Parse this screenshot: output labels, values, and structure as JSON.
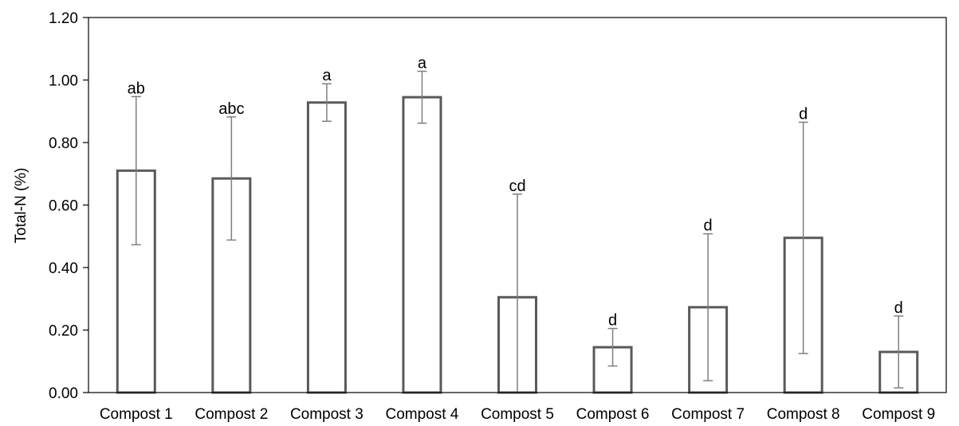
{
  "chart_data": {
    "type": "bar",
    "title": "",
    "xlabel": "",
    "ylabel": "Total-N (%)",
    "ylim": [
      0,
      1.2
    ],
    "yticks": [
      "0.00",
      "0.20",
      "0.40",
      "0.60",
      "0.80",
      "1.00",
      "1.20"
    ],
    "categories": [
      "Compost 1",
      "Compost 2",
      "Compost 3",
      "Compost 4",
      "Compost 5",
      "Compost 6",
      "Compost 7",
      "Compost 8",
      "Compost 9"
    ],
    "values": [
      0.71,
      0.685,
      0.928,
      0.945,
      0.305,
      0.145,
      0.273,
      0.495,
      0.13
    ],
    "error": [
      0.237,
      0.197,
      0.06,
      0.083,
      0.33,
      0.06,
      0.235,
      0.37,
      0.115
    ],
    "significance_letters": [
      "ab",
      "abc",
      "a",
      "a",
      "cd",
      "d",
      "d",
      "d",
      "d"
    ],
    "grid": false,
    "legend": "none",
    "colors": {
      "bar_fill": "#ffffff",
      "bar_stroke": "#595959",
      "error_bar": "#7f7f7f"
    }
  }
}
